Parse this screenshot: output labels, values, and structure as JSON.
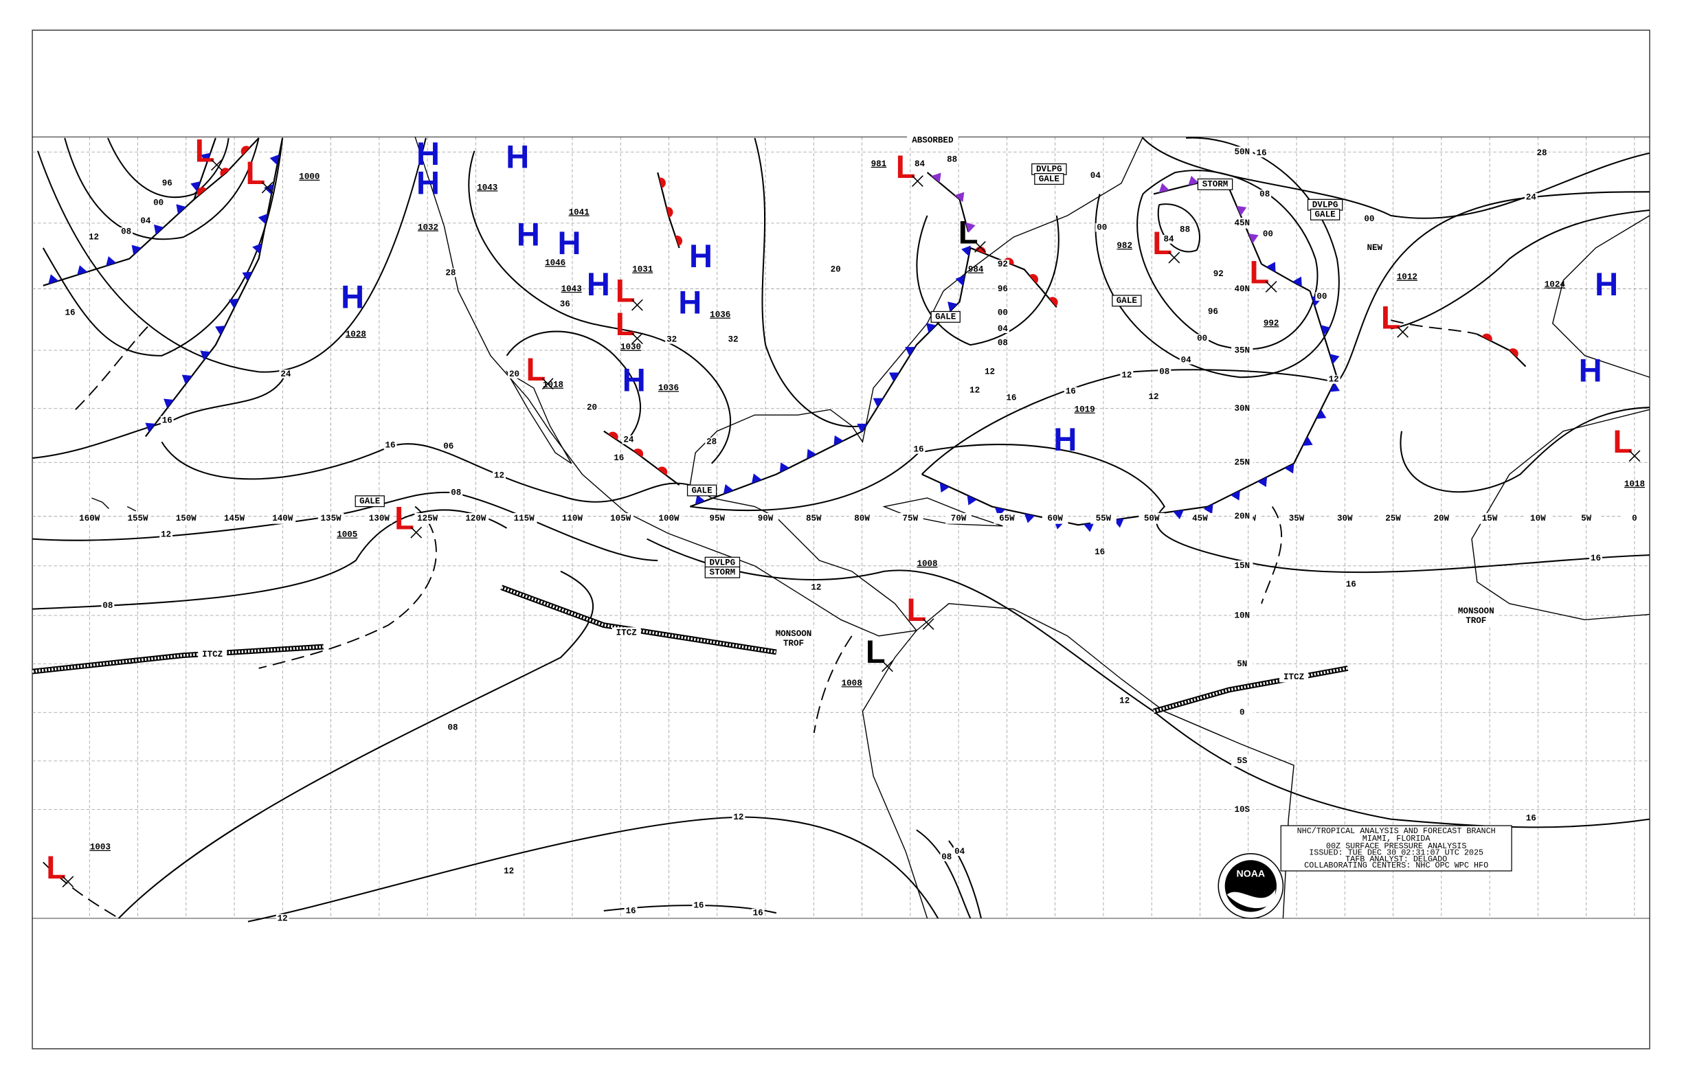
{
  "info_box": [
    "NHC/TROPICAL ANALYSIS AND FORECAST BRANCH",
    "MIAMI, FLORIDA",
    "00Z SURFACE PRESSURE ANALYSIS",
    "ISSUED: TUE DEC 30 02:31:07 UTC 2025",
    "TAFB ANALYST: DELGADO",
    "COLLABORATING CENTERS: NHC OPC WPC HFO"
  ],
  "logo_text": "NOAA",
  "longitude_labels": [
    "160W",
    "155W",
    "150W",
    "145W",
    "140W",
    "135W",
    "130W",
    "125W",
    "120W",
    "115W",
    "110W",
    "105W",
    "100W",
    "95W",
    "90W",
    "85W",
    "80W",
    "75W",
    "70W",
    "65W",
    "60W",
    "55W",
    "50W",
    "45W",
    "40W",
    "35W",
    "30W",
    "25W",
    "20W",
    "15W",
    "10W",
    "5W",
    "0"
  ],
  "latitude_labels": [
    "50N",
    "45N",
    "40N",
    "35N",
    "30N",
    "25N",
    "20N",
    "15N",
    "10N",
    "5N",
    "0",
    "5S",
    "10S"
  ],
  "pressure_centers": [
    {
      "symbol": "L",
      "color": "#e01010"
    },
    {
      "symbol": "H",
      "color": "#1010d0"
    },
    {
      "symbol": "H",
      "value": "1043",
      "color": "#1010d0"
    },
    {
      "symbol": "L",
      "value": "1000",
      "color": "#e01010"
    },
    {
      "symbol": "H",
      "value": "1032",
      "color": "#1010d0"
    },
    {
      "symbol": "H",
      "value": "1046",
      "color": "#1010d0"
    },
    {
      "symbol": "H",
      "value": "1041",
      "color": "#1010d0"
    },
    {
      "symbol": "H",
      "value": "1043",
      "color": "#1010d0"
    },
    {
      "symbol": "L",
      "value": "1031",
      "color": "#e01010"
    },
    {
      "symbol": "H",
      "color": "#1010d0"
    },
    {
      "symbol": "H",
      "value": "1036",
      "color": "#1010d0"
    },
    {
      "symbol": "L",
      "value": "1030",
      "color": "#e01010"
    },
    {
      "symbol": "H",
      "value": "1036",
      "color": "#1010d0"
    },
    {
      "symbol": "L",
      "value": "1018",
      "color": "#e01010"
    },
    {
      "symbol": "H",
      "value": "1028",
      "color": "#1010d0"
    },
    {
      "symbol": "L",
      "value": "1005",
      "color": "#e01010"
    },
    {
      "symbol": "L",
      "value": "981",
      "color": "#e01010"
    },
    {
      "symbol": "L",
      "value": "984",
      "color": "#000000"
    },
    {
      "symbol": "L",
      "value": "982",
      "color": "#e01010"
    },
    {
      "symbol": "L",
      "value": "992",
      "color": "#e01010"
    },
    {
      "symbol": "L",
      "value": "1012",
      "color": "#e01010"
    },
    {
      "symbol": "H",
      "value": "1024",
      "color": "#1010d0"
    },
    {
      "symbol": "H",
      "color": "#1010d0"
    },
    {
      "symbol": "L",
      "value": "1018",
      "color": "#e01010"
    },
    {
      "symbol": "H",
      "value": "1019",
      "color": "#1010d0"
    },
    {
      "symbol": "L",
      "value": "1008",
      "color": "#e01010"
    },
    {
      "symbol": "L",
      "value": "1008",
      "color": "#000000"
    },
    {
      "symbol": "L",
      "value": "1003",
      "color": "#e01010"
    }
  ],
  "isobar_labels": [
    "96",
    "00",
    "04",
    "08",
    "12",
    "16",
    "24",
    "16",
    "16",
    "06",
    "12",
    "08",
    "12",
    "08",
    "08",
    "12",
    "12",
    "12",
    "16",
    "16",
    "16",
    "08",
    "04",
    "12",
    "16",
    "16",
    "16",
    "16",
    "28",
    "24",
    "00",
    "12",
    "16",
    "16",
    "12",
    "12",
    "08",
    "04",
    "00",
    "96",
    "92",
    "88",
    "84",
    "04",
    "00",
    "16",
    "08",
    "00",
    "92",
    "96",
    "00",
    "04",
    "08",
    "12",
    "12",
    "00",
    "88",
    "84",
    "16",
    "28",
    "24",
    "20",
    "16",
    "20",
    "28",
    "36",
    "32",
    "32",
    "20",
    "12"
  ],
  "feature_labels": [
    "ABSORBED",
    "DVLPG",
    "GALE",
    "GALE",
    "GALE",
    "STORM",
    "DVLPG",
    "GALE",
    "NEW",
    "GALE",
    "GALE",
    "DVLPG",
    "STORM",
    "ITCZ",
    "ITCZ",
    "ITCZ",
    "MONSOON",
    "TROF",
    "MONSOON",
    "TROF"
  ]
}
